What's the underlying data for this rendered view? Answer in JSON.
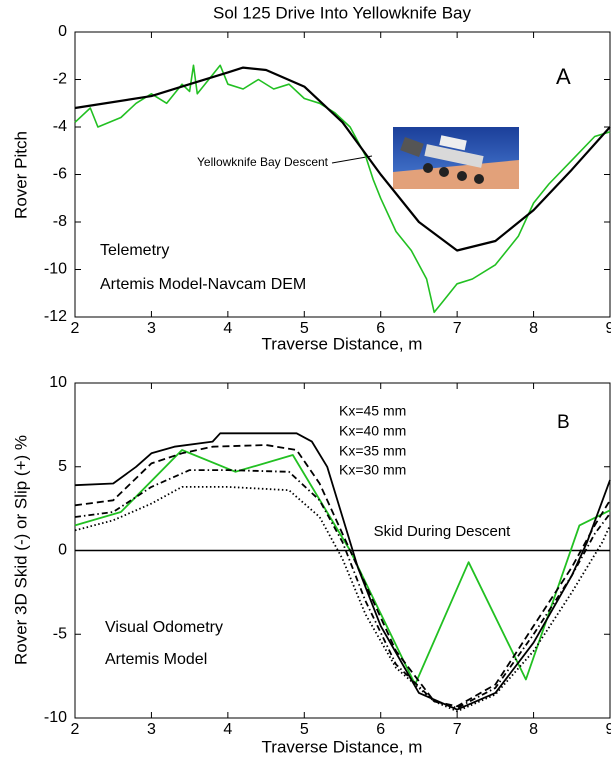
{
  "chart_data": [
    {
      "type": "line",
      "title": "Sol 125 Drive Into Yellowknife Bay",
      "xlabel": "Traverse Distance, m",
      "ylabel": "Rover Pitch",
      "xlim": [
        2,
        9
      ],
      "ylim": [
        -12,
        0
      ],
      "xticks": [
        2,
        3,
        4,
        5,
        6,
        7,
        8,
        9
      ],
      "yticks": [
        0,
        -2,
        -4,
        -6,
        -8,
        -10,
        -12
      ],
      "grid": false,
      "annotations": [
        "A",
        "Yellowknife Bay Descent"
      ],
      "series": [
        {
          "name": "Telemetry",
          "color": "#22c022",
          "style": "solid",
          "x": [
            2,
            2.2,
            2.3,
            2.6,
            2.8,
            3,
            3.2,
            3.4,
            3.5,
            3.55,
            3.6,
            3.8,
            3.9,
            4.0,
            4.2,
            4.4,
            4.6,
            4.8,
            5.0,
            5.2,
            5.4,
            5.6,
            5.8,
            5.9,
            6.0,
            6.2,
            6.4,
            6.6,
            6.7,
            6.8,
            7.0,
            7.2,
            7.5,
            7.8,
            8.0,
            8.2,
            8.5,
            8.8,
            9.0
          ],
          "values": [
            -3.8,
            -3.2,
            -4.0,
            -3.6,
            -3.0,
            -2.6,
            -3.0,
            -2.2,
            -2.5,
            -1.4,
            -2.6,
            -1.8,
            -1.4,
            -2.2,
            -2.4,
            -2.0,
            -2.4,
            -2.2,
            -2.8,
            -3.0,
            -3.4,
            -4.0,
            -5.2,
            -6.2,
            -7.0,
            -8.4,
            -9.2,
            -10.4,
            -11.8,
            -11.4,
            -10.6,
            -10.4,
            -9.8,
            -8.6,
            -7.2,
            -6.4,
            -5.4,
            -4.4,
            -4.2
          ]
        },
        {
          "name": "Artemis Model-Navcam DEM",
          "color": "#000000",
          "style": "solid",
          "x": [
            2,
            3,
            3.5,
            4,
            4.2,
            4.5,
            5,
            5.5,
            6,
            6.5,
            7,
            7.5,
            8,
            8.5,
            9
          ],
          "values": [
            -3.2,
            -2.7,
            -2.2,
            -1.7,
            -1.5,
            -1.6,
            -2.3,
            -3.8,
            -6.0,
            -8.0,
            -9.2,
            -8.8,
            -7.5,
            -5.8,
            -4.0
          ]
        }
      ]
    },
    {
      "type": "line",
      "xlabel": "Traverse Distance, m",
      "ylabel": "Rover 3D Skid (-) or Slip (+) %",
      "xlim": [
        2,
        9
      ],
      "ylim": [
        -10,
        10
      ],
      "xticks": [
        2,
        3,
        4,
        5,
        6,
        7,
        8,
        9
      ],
      "yticks": [
        10,
        5,
        0,
        -5,
        -10
      ],
      "grid": false,
      "annotations": [
        "B",
        "Artemis Model"
      ],
      "reference_line": {
        "value": 0,
        "label": "Skid During Descent"
      },
      "series": [
        {
          "name": "Visual Odometry",
          "color": "#22c022",
          "style": "solid",
          "x": [
            2,
            2.6,
            3.4,
            4.1,
            4.85,
            5.6,
            6.45,
            7.15,
            7.9,
            8.6,
            9.0
          ],
          "values": [
            1.5,
            2.3,
            6.0,
            4.7,
            5.7,
            0,
            -8.0,
            -0.7,
            -7.7,
            1.5,
            2.4
          ]
        },
        {
          "name": "Kx=45 mm",
          "color": "#000000",
          "style": "solid",
          "x": [
            2,
            2.5,
            2.8,
            3.0,
            3.3,
            3.8,
            3.9,
            4.9,
            5.1,
            5.3,
            5.5,
            5.7,
            6.0,
            6.5,
            7.0,
            7.5,
            8.0,
            8.5,
            8.7,
            9.0
          ],
          "values": [
            3.9,
            4.0,
            5.0,
            5.8,
            6.2,
            6.5,
            7.0,
            7.0,
            6.5,
            5.0,
            2.0,
            -1.0,
            -4.5,
            -8.5,
            -9.5,
            -8.5,
            -5.5,
            -1.5,
            0.5,
            4.2
          ]
        },
        {
          "name": "Kx=40 mm",
          "color": "#000000",
          "style": "dashed",
          "x": [
            2,
            2.5,
            3.0,
            3.4,
            3.8,
            4.5,
            4.9,
            5.2,
            5.5,
            5.8,
            6.2,
            6.7,
            7.0,
            7.5,
            8.0,
            8.5,
            8.8,
            9.0
          ],
          "values": [
            2.7,
            3.0,
            5.2,
            5.8,
            6.2,
            6.3,
            6.0,
            4.0,
            1.0,
            -2.0,
            -6.0,
            -9.0,
            -9.3,
            -8.0,
            -4.5,
            -1.0,
            1.5,
            3.0
          ]
        },
        {
          "name": "Kx=35 mm",
          "color": "#000000",
          "style": "dashdot",
          "x": [
            2,
            2.5,
            3.0,
            3.5,
            4.0,
            4.8,
            5.2,
            5.5,
            5.8,
            6.2,
            6.7,
            7.0,
            7.5,
            8.0,
            8.5,
            8.8,
            9.0
          ],
          "values": [
            2.0,
            2.3,
            3.8,
            4.8,
            4.8,
            4.7,
            3.0,
            0.5,
            -3.0,
            -6.8,
            -9.0,
            -9.4,
            -8.2,
            -5.0,
            -1.5,
            1.0,
            2.2
          ]
        },
        {
          "name": "Kx=30 mm",
          "color": "#000000",
          "style": "dotted",
          "x": [
            2,
            2.5,
            3.0,
            3.4,
            4.0,
            4.8,
            5.2,
            5.5,
            5.8,
            6.2,
            6.7,
            7.0,
            7.5,
            8.0,
            8.5,
            8.9,
            9.0
          ],
          "values": [
            1.2,
            1.8,
            2.8,
            3.8,
            3.8,
            3.6,
            2.0,
            -0.5,
            -3.8,
            -7.0,
            -9.0,
            -9.6,
            -8.6,
            -6.0,
            -2.5,
            0.5,
            1.5
          ]
        }
      ]
    }
  ]
}
